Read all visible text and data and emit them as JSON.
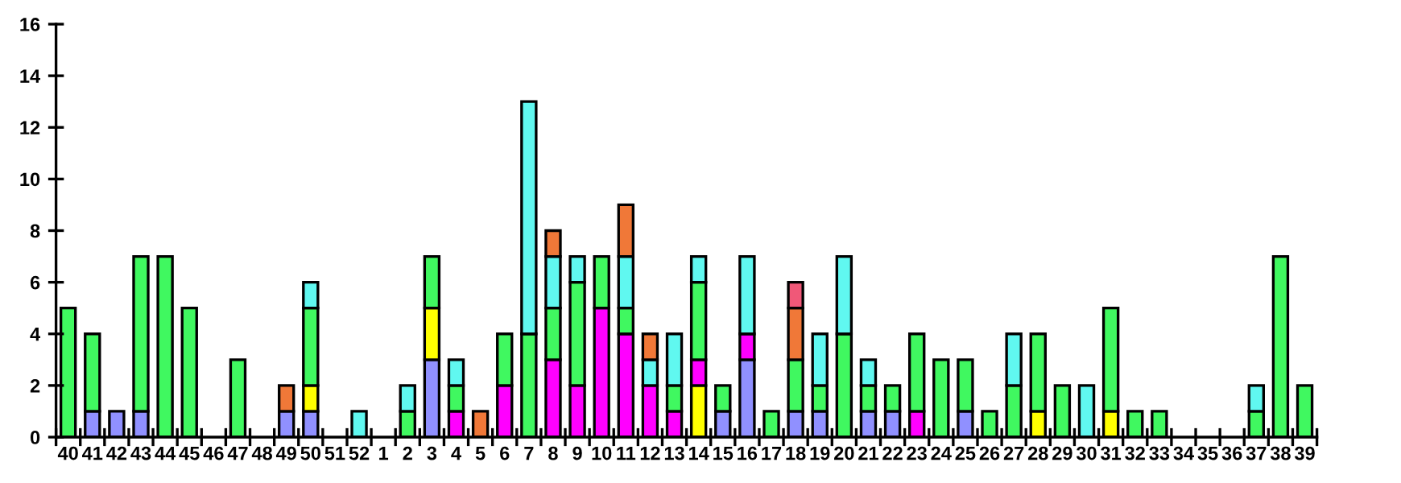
{
  "chart_data": {
    "type": "bar",
    "stacked": true,
    "categories": [
      "40",
      "41",
      "42",
      "43",
      "44",
      "45",
      "46",
      "47",
      "48",
      "49",
      "50",
      "51",
      "52",
      "1",
      "2",
      "3",
      "4",
      "5",
      "6",
      "7",
      "8",
      "9",
      "10",
      "11",
      "12",
      "13",
      "14",
      "15",
      "16",
      "17",
      "18",
      "19",
      "20",
      "21",
      "22",
      "23",
      "24",
      "25",
      "26",
      "27",
      "28",
      "29",
      "30",
      "31",
      "32",
      "33",
      "34",
      "35",
      "36",
      "37",
      "38",
      "39"
    ],
    "series": [
      {
        "color": "#9090ff",
        "values": [
          0,
          1,
          1,
          1,
          0,
          0,
          0,
          0,
          0,
          1,
          1,
          0,
          0,
          0,
          0,
          3,
          0,
          0,
          0,
          0,
          0,
          0,
          0,
          0,
          0,
          0,
          0,
          1,
          3,
          0,
          1,
          1,
          0,
          1,
          1,
          0,
          0,
          1,
          0,
          0,
          0,
          0,
          0,
          0,
          0,
          0,
          0,
          0,
          0,
          0,
          0,
          0
        ]
      },
      {
        "color": "#ffff00",
        "values": [
          0,
          0,
          0,
          0,
          0,
          0,
          0,
          0,
          0,
          0,
          1,
          0,
          0,
          0,
          0,
          2,
          0,
          0,
          0,
          0,
          0,
          0,
          0,
          0,
          0,
          0,
          2,
          0,
          0,
          0,
          0,
          0,
          0,
          0,
          0,
          0,
          0,
          0,
          0,
          0,
          1,
          0,
          0,
          1,
          0,
          0,
          0,
          0,
          0,
          0,
          0,
          0
        ]
      },
      {
        "color": "#ff00ff",
        "values": [
          0,
          0,
          0,
          0,
          0,
          0,
          0,
          0,
          0,
          0,
          0,
          0,
          0,
          0,
          0,
          0,
          1,
          0,
          2,
          0,
          3,
          2,
          5,
          4,
          2,
          1,
          1,
          0,
          1,
          0,
          0,
          0,
          0,
          0,
          0,
          1,
          0,
          0,
          0,
          0,
          0,
          0,
          0,
          0,
          0,
          0,
          0,
          0,
          0,
          0,
          0,
          0
        ]
      },
      {
        "color": "#40f860",
        "values": [
          5,
          3,
          0,
          6,
          7,
          5,
          0,
          3,
          0,
          0,
          3,
          0,
          0,
          0,
          1,
          2,
          1,
          0,
          2,
          4,
          2,
          4,
          2,
          1,
          0,
          1,
          3,
          1,
          0,
          1,
          2,
          1,
          4,
          1,
          1,
          3,
          3,
          2,
          1,
          2,
          3,
          2,
          0,
          4,
          1,
          1,
          0,
          0,
          0,
          1,
          7,
          2
        ]
      },
      {
        "color": "#60f8f0",
        "values": [
          0,
          0,
          0,
          0,
          0,
          0,
          0,
          0,
          0,
          0,
          1,
          0,
          1,
          0,
          1,
          0,
          1,
          0,
          0,
          9,
          2,
          1,
          0,
          2,
          1,
          2,
          1,
          0,
          3,
          0,
          0,
          2,
          3,
          1,
          0,
          0,
          0,
          0,
          0,
          2,
          0,
          0,
          2,
          0,
          0,
          0,
          0,
          0,
          0,
          1,
          0,
          0
        ]
      },
      {
        "color": "#f07838",
        "values": [
          0,
          0,
          0,
          0,
          0,
          0,
          0,
          0,
          0,
          1,
          0,
          0,
          0,
          0,
          0,
          0,
          0,
          1,
          0,
          0,
          1,
          0,
          0,
          2,
          1,
          0,
          0,
          0,
          0,
          0,
          2,
          0,
          0,
          0,
          0,
          0,
          0,
          0,
          0,
          0,
          0,
          0,
          0,
          0,
          0,
          0,
          0,
          0,
          0,
          0,
          0,
          0
        ]
      },
      {
        "color": "#f05878",
        "values": [
          0,
          0,
          0,
          0,
          0,
          0,
          0,
          0,
          0,
          0,
          0,
          0,
          0,
          0,
          0,
          0,
          0,
          0,
          0,
          0,
          0,
          0,
          0,
          0,
          0,
          0,
          0,
          0,
          0,
          0,
          1,
          0,
          0,
          0,
          0,
          0,
          0,
          0,
          0,
          0,
          0,
          0,
          0,
          0,
          0,
          0,
          0,
          0,
          0,
          0,
          0,
          0
        ]
      }
    ],
    "ylim": [
      0,
      16
    ],
    "yticks": [
      0,
      2,
      4,
      6,
      8,
      10,
      12,
      14,
      16
    ],
    "grid": false,
    "legend": false
  }
}
